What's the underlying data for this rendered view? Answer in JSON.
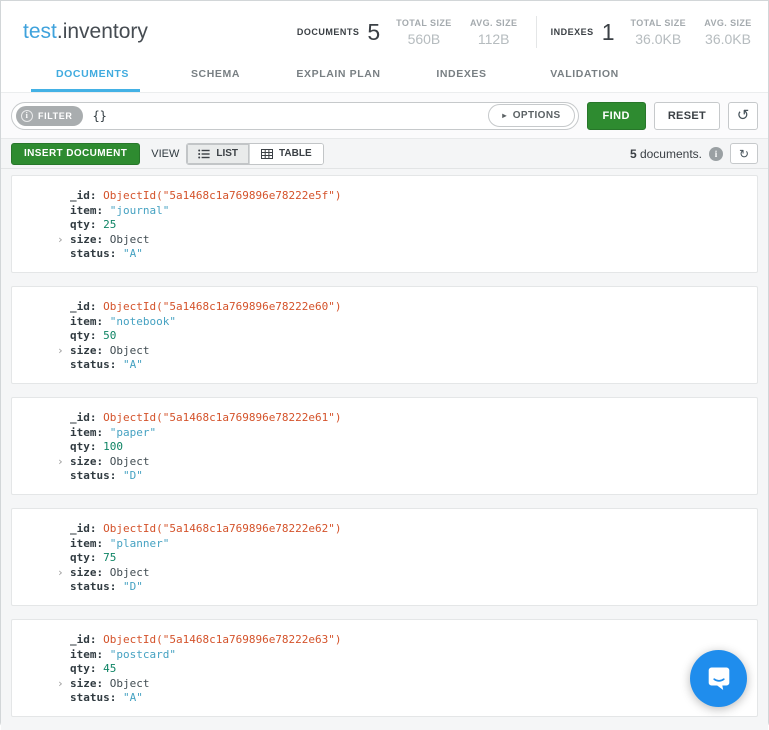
{
  "header": {
    "namespace": {
      "database": "test",
      "dot": ".",
      "collection": "inventory"
    },
    "stats": {
      "documents": {
        "label": "DOCUMENTS",
        "value": "5",
        "total_size_label": "TOTAL SIZE",
        "total_size": "560B",
        "avg_size_label": "AVG. SIZE",
        "avg_size": "112B"
      },
      "indexes": {
        "label": "INDEXES",
        "value": "1",
        "total_size_label": "TOTAL SIZE",
        "total_size": "36.0KB",
        "avg_size_label": "AVG. SIZE",
        "avg_size": "36.0KB"
      }
    }
  },
  "tabs": [
    {
      "label": "DOCUMENTS",
      "active": true
    },
    {
      "label": "SCHEMA",
      "active": false
    },
    {
      "label": "EXPLAIN PLAN",
      "active": false
    },
    {
      "label": "INDEXES",
      "active": false
    },
    {
      "label": "VALIDATION",
      "active": false
    }
  ],
  "query_bar": {
    "filter_label": "FILTER",
    "filter_info_glyph": "i",
    "filter_value": "{}",
    "options_label": "OPTIONS",
    "find_label": "FIND",
    "reset_label": "RESET"
  },
  "toolbar": {
    "insert_label": "INSERT DOCUMENT",
    "view_label": "VIEW",
    "list_label": "LIST",
    "table_label": "TABLE",
    "count_value": "5",
    "count_suffix": " documents.",
    "info_glyph": "i"
  },
  "icons": {
    "options_caret": "▸",
    "history_glyph": "↺",
    "refresh_glyph": "↻",
    "expand_caret": "›"
  },
  "colors": {
    "accent_blue": "#43b1e5",
    "button_green": "#2e8b30",
    "objectid": "#d4532b",
    "string": "#46a2c2",
    "number": "#0e8464",
    "intercom_blue": "#1f8ded"
  },
  "documents": [
    {
      "fields": [
        {
          "key": "_id",
          "value": "ObjectId(\"5a1468c1a769896e78222e5f\")",
          "type": "objectid",
          "expandable": false
        },
        {
          "key": "item",
          "value": "\"journal\"",
          "type": "string",
          "expandable": false
        },
        {
          "key": "qty",
          "value": "25",
          "type": "number",
          "expandable": false
        },
        {
          "key": "size",
          "value": "Object",
          "type": "object",
          "expandable": true
        },
        {
          "key": "status",
          "value": "\"A\"",
          "type": "string",
          "expandable": false
        }
      ]
    },
    {
      "fields": [
        {
          "key": "_id",
          "value": "ObjectId(\"5a1468c1a769896e78222e60\")",
          "type": "objectid",
          "expandable": false
        },
        {
          "key": "item",
          "value": "\"notebook\"",
          "type": "string",
          "expandable": false
        },
        {
          "key": "qty",
          "value": "50",
          "type": "number",
          "expandable": false
        },
        {
          "key": "size",
          "value": "Object",
          "type": "object",
          "expandable": true
        },
        {
          "key": "status",
          "value": "\"A\"",
          "type": "string",
          "expandable": false
        }
      ]
    },
    {
      "fields": [
        {
          "key": "_id",
          "value": "ObjectId(\"5a1468c1a769896e78222e61\")",
          "type": "objectid",
          "expandable": false
        },
        {
          "key": "item",
          "value": "\"paper\"",
          "type": "string",
          "expandable": false
        },
        {
          "key": "qty",
          "value": "100",
          "type": "number",
          "expandable": false
        },
        {
          "key": "size",
          "value": "Object",
          "type": "object",
          "expandable": true
        },
        {
          "key": "status",
          "value": "\"D\"",
          "type": "string",
          "expandable": false
        }
      ]
    },
    {
      "fields": [
        {
          "key": "_id",
          "value": "ObjectId(\"5a1468c1a769896e78222e62\")",
          "type": "objectid",
          "expandable": false
        },
        {
          "key": "item",
          "value": "\"planner\"",
          "type": "string",
          "expandable": false
        },
        {
          "key": "qty",
          "value": "75",
          "type": "number",
          "expandable": false
        },
        {
          "key": "size",
          "value": "Object",
          "type": "object",
          "expandable": true
        },
        {
          "key": "status",
          "value": "\"D\"",
          "type": "string",
          "expandable": false
        }
      ]
    },
    {
      "fields": [
        {
          "key": "_id",
          "value": "ObjectId(\"5a1468c1a769896e78222e63\")",
          "type": "objectid",
          "expandable": false
        },
        {
          "key": "item",
          "value": "\"postcard\"",
          "type": "string",
          "expandable": false
        },
        {
          "key": "qty",
          "value": "45",
          "type": "number",
          "expandable": false
        },
        {
          "key": "size",
          "value": "Object",
          "type": "object",
          "expandable": true
        },
        {
          "key": "status",
          "value": "\"A\"",
          "type": "string",
          "expandable": false
        }
      ]
    }
  ]
}
